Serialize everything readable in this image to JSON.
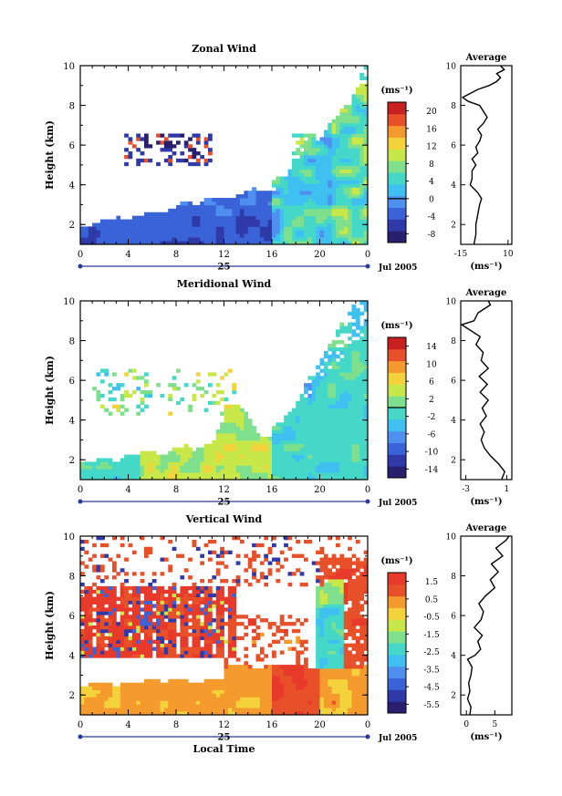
{
  "chart_data": [
    {
      "type": "heatmap",
      "title": "Zonal Wind",
      "ylabel": "Height (km)",
      "xlabel": "",
      "x_ticks": [
        "0",
        "4",
        "8",
        "12",
        "16",
        "20",
        "0"
      ],
      "y_ticks": [
        "2",
        "4",
        "6",
        "8",
        "10"
      ],
      "xlim": [
        0,
        24
      ],
      "ylim": [
        1,
        10
      ],
      "date_day": "25",
      "date_month": "Jul 2005",
      "colorbar": {
        "unit": "(ms⁻¹)",
        "ticks": [
          "-8",
          "-4",
          "0",
          "4",
          "8",
          "12",
          "16",
          "20"
        ],
        "range": [
          -10,
          22
        ],
        "colors": [
          "#2a1e6e",
          "#2f3aa8",
          "#3a63d8",
          "#4f8ff0",
          "#3fc0f0",
          "#45d8c8",
          "#7ee08c",
          "#c8e84a",
          "#f3d23c",
          "#f59a2c",
          "#e8502a",
          "#c82020"
        ],
        "zero_line": 0
      },
      "field_style": "zonal",
      "profile": {
        "title": "Average",
        "xlabel": "(ms⁻¹)",
        "x_ticks": [
          "-15",
          "10"
        ],
        "y_ticks": [
          "2",
          "4",
          "6",
          "8",
          "10"
        ],
        "xlim": [
          -15,
          12
        ],
        "heights": [
          1.0,
          1.5,
          2.0,
          2.5,
          3.0,
          3.3,
          3.6,
          4.0,
          4.3,
          4.7,
          5.0,
          5.3,
          5.6,
          5.9,
          6.2,
          6.5,
          6.8,
          7.1,
          7.4,
          7.7,
          8.0,
          8.2,
          8.4,
          8.6,
          8.8,
          9.0,
          9.2,
          9.4,
          9.6,
          9.8,
          10.0
        ],
        "values": [
          -8,
          -7,
          -7,
          -6,
          -5,
          -4,
          -6,
          -10,
          -9,
          -9,
          -7,
          -9,
          -6,
          -7,
          -5,
          -4,
          -6,
          -3,
          -1,
          -3,
          -5,
          -11,
          -14,
          -10,
          -6,
          0,
          4,
          6,
          4,
          8,
          6
        ]
      }
    },
    {
      "type": "heatmap",
      "title": "Meridional Wind",
      "ylabel": "Height (km)",
      "xlabel": "",
      "x_ticks": [
        "0",
        "4",
        "8",
        "12",
        "16",
        "20",
        "0"
      ],
      "y_ticks": [
        "2",
        "4",
        "6",
        "8",
        "10"
      ],
      "xlim": [
        0,
        24
      ],
      "ylim": [
        1,
        10
      ],
      "date_day": "25",
      "date_month": "Jul 2005",
      "colorbar": {
        "unit": "(ms⁻¹)",
        "ticks": [
          "-14",
          "-10",
          "-6",
          "-2",
          "2",
          "6",
          "10",
          "14"
        ],
        "range": [
          -16,
          16
        ],
        "colors": [
          "#2a1e6e",
          "#2f3aa8",
          "#3a63d8",
          "#4f8ff0",
          "#3fc0f0",
          "#45d8c8",
          "#7ee08c",
          "#c8e84a",
          "#f3d23c",
          "#f59a2c",
          "#e8502a",
          "#c82020"
        ],
        "zero_line": 0
      },
      "field_style": "meridional",
      "profile": {
        "title": "Average",
        "xlabel": "(ms⁻¹)",
        "x_ticks": [
          "-3",
          "1"
        ],
        "y_ticks": [
          "2",
          "4",
          "6",
          "8",
          "10"
        ],
        "xlim": [
          -3.5,
          1.5
        ],
        "heights": [
          1.0,
          1.4,
          1.8,
          2.2,
          2.6,
          3.0,
          3.4,
          3.8,
          4.2,
          4.6,
          5.0,
          5.4,
          5.8,
          6.2,
          6.6,
          7.0,
          7.4,
          7.8,
          8.2,
          8.6,
          8.8,
          9.0,
          9.4,
          9.8,
          10.0
        ],
        "values": [
          0.5,
          0.8,
          0.2,
          -0.6,
          -1.2,
          -1.5,
          -1.2,
          -1.6,
          -1.0,
          -1.4,
          -0.8,
          -1.6,
          -0.9,
          -1.7,
          -0.8,
          -1.5,
          -1.3,
          -2.0,
          -1.6,
          -2.8,
          -3.4,
          -2.2,
          -1.8,
          -0.6,
          -0.8
        ]
      }
    },
    {
      "type": "heatmap",
      "title": "Vertical Wind",
      "ylabel": "Height (km)",
      "xlabel": "Local Time",
      "x_ticks": [
        "0",
        "4",
        "8",
        "12",
        "16",
        "20",
        "0"
      ],
      "y_ticks": [
        "2",
        "4",
        "6",
        "8",
        "10"
      ],
      "xlim": [
        0,
        24
      ],
      "ylim": [
        1,
        10
      ],
      "date_day": "25",
      "date_month": "Jul 2005",
      "colorbar": {
        "unit": "(ms⁻¹)",
        "ticks": [
          "-5.5",
          "-4.5",
          "-3.5",
          "-2.5",
          "-1.5",
          "-0.5",
          "0.5",
          "1.5"
        ],
        "range": [
          -6,
          2
        ],
        "colors": [
          "#2a1e6e",
          "#2f3aa8",
          "#3a63d8",
          "#4f8ff0",
          "#3fc0f0",
          "#45d8c8",
          "#7ee08c",
          "#c8e84a",
          "#f3d23c",
          "#f59a2c",
          "#e8502a",
          "#e83a2a"
        ],
        "zero_line": null
      },
      "field_style": "vertical",
      "profile": {
        "title": "Average",
        "xlabel": "(ms⁻¹)",
        "x_ticks": [
          "0",
          "5"
        ],
        "y_ticks": [
          "2",
          "4",
          "6",
          "8",
          "10"
        ],
        "xlim": [
          -1,
          8
        ],
        "heights": [
          1.0,
          1.4,
          1.8,
          2.2,
          2.6,
          3.0,
          3.4,
          3.8,
          4.0,
          4.3,
          4.7,
          5.0,
          5.4,
          5.8,
          6.2,
          6.6,
          7.0,
          7.4,
          7.8,
          8.2,
          8.6,
          9.0,
          9.4,
          9.8,
          10.0
        ],
        "values": [
          0.6,
          0.8,
          0.2,
          0.6,
          0.4,
          0.8,
          1.0,
          0.2,
          1.5,
          2.5,
          2.0,
          2.8,
          1.4,
          2.6,
          3.0,
          2.2,
          3.4,
          5.0,
          4.2,
          5.6,
          4.4,
          6.4,
          5.2,
          7.0,
          7.5
        ]
      }
    }
  ]
}
